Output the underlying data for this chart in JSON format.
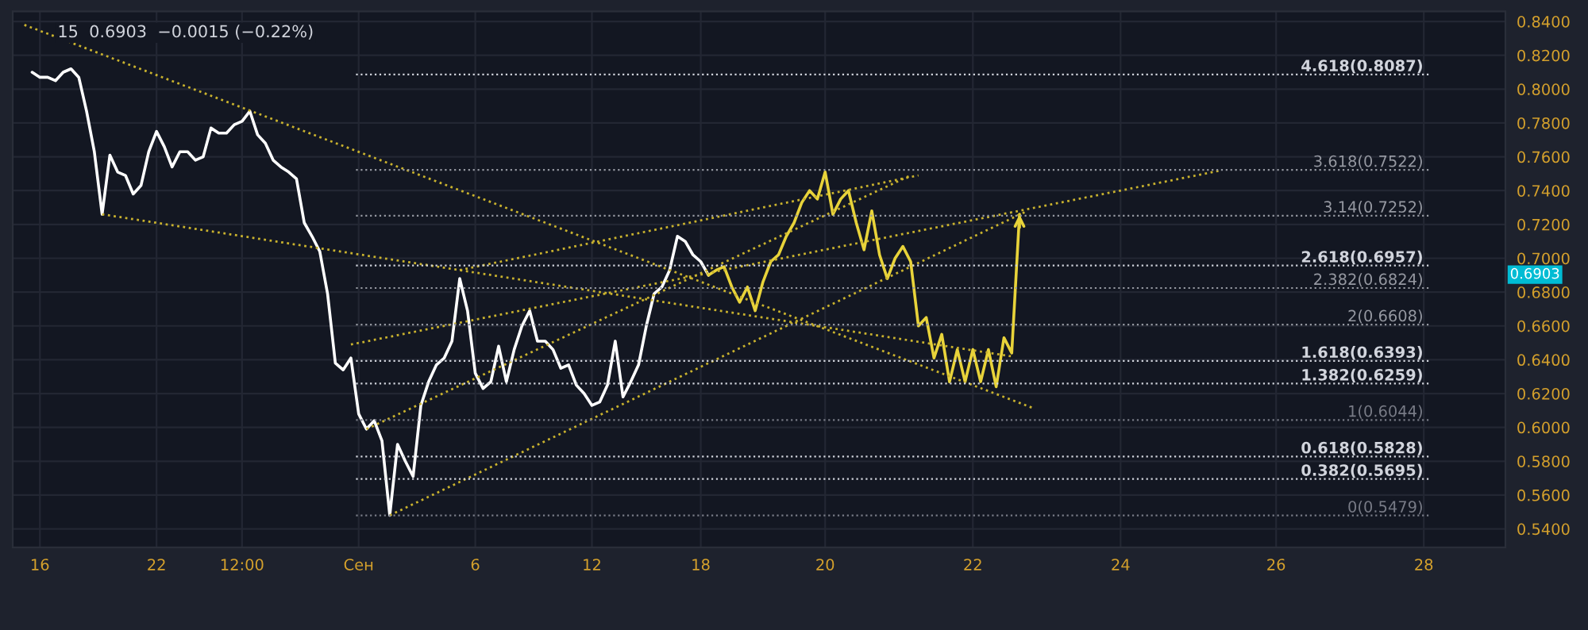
{
  "chart_data": {
    "type": "line",
    "title": "15  0.6903  −0.0015 (−0.22%)",
    "categories": [
      null,
      null,
      null,
      "16",
      null,
      null,
      null,
      null,
      null,
      null,
      null,
      null,
      null,
      null,
      null,
      null,
      null,
      null,
      "22",
      null,
      null,
      null,
      null,
      null,
      null,
      null,
      null,
      null,
      null,
      "12:00",
      null,
      null,
      null,
      null,
      null,
      null,
      null,
      null,
      null,
      null,
      null,
      null,
      null,
      null,
      "Сен",
      null,
      null,
      null,
      null,
      null,
      null,
      null,
      null,
      null,
      null,
      null,
      null,
      null,
      null,
      "6",
      null,
      null,
      null,
      null,
      null,
      null,
      null,
      null,
      null,
      null,
      null,
      null,
      null,
      null,
      "12",
      null,
      null,
      null,
      null,
      null,
      null,
      null,
      null,
      null,
      null,
      null,
      null,
      null,
      "18",
      null,
      null,
      null,
      null,
      null,
      null,
      null,
      null,
      null,
      null,
      null,
      null,
      null,
      null,
      null,
      "20",
      null,
      null,
      null,
      null,
      null,
      null,
      null,
      null,
      null,
      null,
      null,
      null,
      null,
      null,
      null,
      null,
      null,
      null,
      "22",
      null,
      null,
      null,
      null,
      null,
      null,
      null,
      null,
      null,
      null,
      null,
      null,
      null,
      null,
      null,
      null,
      null,
      null,
      "24",
      null,
      null,
      null,
      null,
      null,
      null,
      null,
      null,
      null,
      null,
      null,
      null,
      null,
      null,
      null,
      null,
      null,
      null,
      null,
      "26",
      null,
      null,
      null,
      null,
      null,
      null,
      null,
      null,
      null,
      null,
      null,
      null,
      null,
      null,
      null,
      null,
      null,
      null,
      "28",
      null,
      null,
      null,
      null,
      null,
      null,
      null,
      null,
      null,
      null
    ],
    "ylim": [
      0.529,
      0.846
    ],
    "yticks": [
      {
        "value": 0.54,
        "label": "0.5400"
      },
      {
        "value": 0.56,
        "label": "0.5600"
      },
      {
        "value": 0.58,
        "label": "0.5800"
      },
      {
        "value": 0.6,
        "label": "0.6000"
      },
      {
        "value": 0.62,
        "label": "0.6200"
      },
      {
        "value": 0.64,
        "label": "0.6400"
      },
      {
        "value": 0.66,
        "label": "0.6600"
      },
      {
        "value": 0.68,
        "label": "0.6800"
      },
      {
        "value": 0.7,
        "label": "0.7000"
      },
      {
        "value": 0.72,
        "label": "0.7200"
      },
      {
        "value": 0.74,
        "label": "0.7400"
      },
      {
        "value": 0.76,
        "label": "0.7600"
      },
      {
        "value": 0.78,
        "label": "0.7800"
      },
      {
        "value": 0.8,
        "label": "0.8000"
      },
      {
        "value": 0.82,
        "label": "0.8200"
      },
      {
        "value": 0.84,
        "label": "0.8400"
      }
    ],
    "grid": true,
    "series": [
      {
        "type": "line",
        "color": "#ffffff",
        "line_style": "solid",
        "values": [
          null,
          null,
          0.81,
          0.807,
          0.807,
          0.805,
          0.81,
          0.812,
          0.807,
          0.787,
          0.763,
          0.726,
          0.761,
          0.751,
          0.749,
          0.738,
          0.743,
          0.763,
          0.775,
          0.766,
          0.754,
          0.763,
          0.763,
          0.758,
          0.76,
          0.777,
          0.774,
          0.774,
          0.779,
          0.781,
          0.787,
          0.773,
          0.768,
          0.758,
          0.754,
          0.751,
          0.747,
          0.721,
          0.713,
          0.704,
          0.679,
          0.638,
          0.634,
          0.641,
          0.608,
          0.599,
          0.604,
          0.592,
          0.548,
          0.59,
          0.58,
          0.571,
          0.613,
          0.627,
          0.637,
          0.641,
          0.651,
          0.688,
          0.669,
          0.632,
          0.623,
          0.627,
          0.648,
          0.627,
          0.646,
          0.66,
          0.669,
          0.651,
          0.651,
          0.646,
          0.635,
          0.637,
          0.625,
          0.62,
          0.613,
          0.615,
          0.625,
          0.651,
          0.618,
          0.627,
          0.637,
          0.66,
          0.679,
          0.683,
          0.693,
          0.713,
          0.71,
          0.702,
          0.698,
          0.69,
          null,
          null,
          null,
          null,
          null,
          null,
          null,
          null,
          null,
          null,
          null,
          null,
          null,
          null,
          null,
          null,
          null,
          null,
          null,
          null,
          null,
          null,
          null,
          null,
          null,
          null,
          null,
          null,
          null,
          null,
          null,
          null,
          null,
          null,
          null,
          null,
          null,
          null,
          null,
          null,
          null,
          null,
          null,
          null,
          null,
          null,
          null,
          null,
          null,
          null,
          null,
          null,
          null,
          null,
          null,
          null,
          null,
          null,
          null,
          null,
          null,
          null,
          null,
          null,
          null,
          null,
          null,
          null,
          null,
          null,
          null,
          null,
          null,
          null,
          null,
          null,
          null,
          null,
          null,
          null,
          null,
          null,
          null,
          null,
          null,
          null,
          null,
          null,
          null,
          null,
          null,
          null,
          null,
          null,
          null,
          null,
          null,
          null,
          null,
          null,
          null,
          null
        ]
      },
      {
        "type": "line",
        "color": "#e8d33a",
        "line_style": "solid",
        "values": [
          null,
          null,
          null,
          null,
          null,
          null,
          null,
          null,
          null,
          null,
          null,
          null,
          null,
          null,
          null,
          null,
          null,
          null,
          null,
          null,
          null,
          null,
          null,
          null,
          null,
          null,
          null,
          null,
          null,
          null,
          null,
          null,
          null,
          null,
          null,
          null,
          null,
          null,
          null,
          null,
          null,
          null,
          null,
          null,
          null,
          null,
          null,
          null,
          null,
          null,
          null,
          null,
          null,
          null,
          null,
          null,
          null,
          null,
          null,
          null,
          null,
          null,
          null,
          null,
          null,
          null,
          null,
          null,
          null,
          null,
          null,
          null,
          null,
          null,
          null,
          null,
          null,
          null,
          null,
          null,
          null,
          null,
          null,
          null,
          null,
          null,
          null,
          null,
          null,
          0.69,
          0.693,
          0.695,
          0.683,
          0.674,
          0.683,
          0.669,
          0.686,
          0.698,
          0.702,
          0.713,
          0.721,
          0.733,
          0.74,
          0.735,
          0.751,
          0.726,
          0.735,
          0.74,
          0.721,
          0.705,
          0.728,
          0.702,
          0.688,
          0.7,
          0.707,
          0.698,
          0.66,
          0.665,
          0.641,
          0.655,
          0.627,
          0.646,
          0.627,
          0.646,
          0.627,
          0.646,
          0.624,
          0.653,
          0.644,
          0.726,
          null,
          null,
          null,
          null,
          null,
          null,
          null,
          null,
          null,
          null,
          null,
          null,
          null,
          null,
          null,
          null,
          null,
          null,
          null,
          null,
          null,
          null,
          null,
          null,
          null,
          null,
          null,
          null,
          null,
          null,
          null,
          null,
          null,
          null,
          null,
          null,
          null,
          null,
          null,
          null,
          null,
          null,
          null,
          null,
          null,
          null,
          null,
          null,
          null,
          null,
          null,
          null,
          null,
          null,
          null,
          null,
          null,
          null,
          null,
          null,
          null,
          null
        ]
      },
      {
        "type": "line",
        "color": "#c9b22e",
        "line_style": "dotted",
        "values": [
          null,
          0.838,
          null,
          null,
          null,
          null,
          null,
          null,
          null,
          null,
          null,
          null,
          null,
          null,
          null,
          null,
          null,
          null,
          null,
          null,
          null,
          null,
          null,
          null,
          null,
          null,
          null,
          null,
          null,
          null,
          null,
          null,
          null,
          null,
          null,
          null,
          null,
          null,
          null,
          null,
          null,
          null,
          null,
          null,
          null,
          null,
          null,
          null,
          null,
          null,
          null,
          null,
          null,
          null,
          null,
          null,
          null,
          null,
          null,
          null,
          null,
          null,
          null,
          null,
          null,
          null,
          null,
          null,
          null,
          null,
          null,
          null,
          null,
          null,
          null,
          null,
          null,
          null,
          null,
          null,
          null,
          null,
          null,
          null,
          null,
          null,
          null,
          null,
          null,
          null,
          null,
          null,
          null,
          null,
          null,
          null,
          null,
          null,
          null,
          null,
          null,
          null,
          null,
          null,
          null,
          null,
          null,
          null,
          null,
          null,
          null,
          null,
          null,
          null,
          null,
          null,
          null,
          null,
          null,
          null,
          null,
          null,
          null,
          null,
          null,
          null,
          null,
          null,
          null,
          null,
          null,
          0.611,
          null,
          null,
          null,
          null,
          null,
          null,
          null,
          null,
          null,
          null,
          null,
          null,
          null,
          null,
          null,
          null,
          null,
          null,
          null,
          null,
          null,
          null,
          null,
          null,
          null,
          null,
          null,
          null,
          null,
          null,
          null,
          null,
          null,
          null,
          null,
          null,
          null,
          null,
          null,
          null,
          null,
          null,
          null,
          null,
          null,
          null,
          null,
          null,
          null,
          null,
          null,
          null,
          null,
          null,
          null,
          null,
          null,
          null,
          null,
          null
        ]
      },
      {
        "type": "line",
        "color": "#c9b22e",
        "line_style": "dotted",
        "values": [
          null,
          null,
          null,
          null,
          null,
          null,
          null,
          null,
          null,
          null,
          null,
          0.726,
          null,
          null,
          null,
          null,
          null,
          null,
          null,
          null,
          null,
          null,
          null,
          null,
          null,
          null,
          null,
          null,
          null,
          null,
          null,
          null,
          null,
          null,
          null,
          null,
          null,
          null,
          null,
          null,
          null,
          null,
          null,
          null,
          null,
          null,
          null,
          null,
          null,
          null,
          null,
          null,
          null,
          null,
          null,
          null,
          null,
          null,
          null,
          null,
          null,
          null,
          null,
          null,
          null,
          null,
          null,
          null,
          null,
          null,
          null,
          null,
          null,
          null,
          null,
          null,
          null,
          null,
          null,
          null,
          null,
          null,
          null,
          null,
          null,
          null,
          null,
          null,
          null,
          null,
          null,
          null,
          null,
          null,
          null,
          null,
          null,
          null,
          null,
          null,
          null,
          null,
          null,
          null,
          null,
          null,
          null,
          null,
          null,
          null,
          null,
          null,
          null,
          null,
          null,
          null,
          null,
          null,
          null,
          null,
          null,
          null,
          null,
          null,
          null,
          null,
          null,
          null,
          0.642,
          null,
          null,
          null,
          null,
          null,
          null,
          null,
          null,
          null,
          null,
          null,
          null,
          null,
          null,
          null,
          null,
          null,
          null,
          null,
          null,
          null,
          null,
          null,
          null,
          null,
          null,
          null,
          null,
          null,
          null,
          null,
          null,
          null,
          null,
          null,
          null,
          null,
          null,
          null,
          null,
          null,
          null,
          null,
          null,
          null,
          null,
          null,
          null,
          null,
          null,
          null,
          null,
          null,
          null,
          null,
          null,
          null,
          null,
          null,
          null,
          null,
          null,
          null
        ]
      },
      {
        "type": "line",
        "color": "#c9b22e",
        "line_style": "dotted",
        "values": [
          null,
          null,
          null,
          null,
          null,
          null,
          null,
          null,
          null,
          null,
          null,
          null,
          null,
          null,
          null,
          null,
          null,
          null,
          null,
          null,
          null,
          null,
          null,
          null,
          null,
          null,
          null,
          null,
          null,
          null,
          null,
          null,
          null,
          null,
          null,
          null,
          null,
          null,
          null,
          null,
          null,
          null,
          null,
          null,
          null,
          null,
          null,
          null,
          0.548,
          null,
          null,
          null,
          null,
          null,
          null,
          null,
          null,
          null,
          null,
          null,
          null,
          null,
          null,
          null,
          null,
          null,
          null,
          null,
          null,
          null,
          null,
          null,
          null,
          null,
          null,
          null,
          null,
          null,
          null,
          null,
          null,
          null,
          null,
          null,
          null,
          null,
          null,
          null,
          null,
          null,
          null,
          null,
          null,
          null,
          null,
          null,
          null,
          null,
          null,
          null,
          null,
          null,
          null,
          null,
          null,
          null,
          null,
          null,
          null,
          null,
          null,
          null,
          null,
          null,
          null,
          null,
          null,
          null,
          null,
          null,
          null,
          null,
          null,
          null,
          null,
          null,
          null,
          null,
          null,
          null,
          0.728,
          null,
          null,
          null,
          null,
          null,
          null,
          null,
          null,
          null,
          null,
          null,
          null,
          null,
          null,
          null,
          null,
          null,
          null,
          null,
          null,
          null,
          null,
          null,
          null,
          null,
          null,
          null,
          null,
          null,
          null,
          null,
          null,
          null,
          null,
          null,
          null,
          null,
          null,
          null,
          null,
          null,
          null,
          null,
          null,
          null,
          null,
          null,
          null,
          null,
          null,
          null,
          null,
          null,
          null,
          null,
          null,
          null,
          null,
          null,
          null,
          null
        ]
      },
      {
        "type": "line",
        "color": "#c9b22e",
        "line_style": "dotted",
        "values": [
          null,
          null,
          null,
          null,
          null,
          null,
          null,
          null,
          null,
          null,
          null,
          null,
          null,
          null,
          null,
          null,
          null,
          null,
          null,
          null,
          null,
          null,
          null,
          null,
          null,
          null,
          null,
          null,
          null,
          null,
          null,
          null,
          null,
          null,
          null,
          null,
          null,
          null,
          null,
          null,
          null,
          null,
          null,
          null,
          null,
          null,
          null,
          null,
          null,
          null,
          null,
          null,
          null,
          null,
          null,
          null,
          null,
          0.693,
          null,
          null,
          null,
          null,
          null,
          null,
          null,
          null,
          null,
          null,
          null,
          null,
          null,
          null,
          null,
          null,
          null,
          null,
          null,
          null,
          null,
          null,
          null,
          null,
          null,
          null,
          null,
          null,
          null,
          null,
          null,
          null,
          null,
          null,
          null,
          null,
          null,
          null,
          null,
          null,
          null,
          null,
          null,
          null,
          null,
          null,
          null,
          null,
          null,
          null,
          null,
          null,
          null,
          null,
          null,
          null,
          null,
          null,
          0.749,
          null,
          null,
          null,
          null,
          null,
          null,
          null,
          null,
          null,
          null,
          null,
          null,
          null,
          null,
          null,
          null,
          null,
          null,
          null,
          null,
          null,
          null,
          null,
          null,
          null,
          null,
          null,
          null,
          null,
          null,
          null,
          null,
          null,
          null,
          null,
          null,
          null,
          null,
          null,
          null,
          null,
          null,
          null,
          null,
          null,
          null,
          null,
          null,
          null,
          null,
          null,
          null,
          null,
          null,
          null,
          null,
          null,
          null,
          null,
          null,
          null,
          null,
          null,
          null,
          null,
          null,
          null,
          null,
          null,
          null,
          null,
          null,
          null,
          null,
          null
        ]
      },
      {
        "type": "line",
        "color": "#c9b22e",
        "line_style": "dotted",
        "values": [
          null,
          null,
          null,
          null,
          null,
          null,
          null,
          null,
          null,
          null,
          null,
          null,
          null,
          null,
          null,
          null,
          null,
          null,
          null,
          null,
          null,
          null,
          null,
          null,
          null,
          null,
          null,
          null,
          null,
          null,
          null,
          null,
          null,
          null,
          null,
          null,
          null,
          null,
          null,
          null,
          null,
          null,
          null,
          0.649,
          null,
          null,
          null,
          null,
          null,
          null,
          null,
          null,
          null,
          null,
          null,
          null,
          null,
          null,
          null,
          null,
          null,
          null,
          null,
          null,
          null,
          null,
          null,
          null,
          null,
          null,
          null,
          null,
          null,
          null,
          null,
          null,
          null,
          null,
          null,
          null,
          null,
          null,
          null,
          null,
          null,
          null,
          null,
          null,
          null,
          null,
          null,
          null,
          null,
          null,
          null,
          null,
          null,
          null,
          null,
          null,
          null,
          null,
          null,
          null,
          null,
          null,
          null,
          null,
          null,
          null,
          null,
          null,
          null,
          null,
          null,
          null,
          null,
          null,
          null,
          null,
          null,
          null,
          null,
          null,
          null,
          null,
          null,
          null,
          null,
          null,
          null,
          null,
          null,
          null,
          null,
          null,
          null,
          null,
          null,
          null,
          null,
          null,
          null,
          null,
          null,
          null,
          null,
          null,
          null,
          null,
          null,
          null,
          null,
          null,
          null,
          0.752,
          null,
          null,
          null,
          null,
          null,
          null,
          null,
          null,
          null,
          null,
          null,
          null,
          null,
          null,
          null,
          null,
          null,
          null,
          null,
          null,
          null,
          null,
          null,
          null,
          null,
          null,
          null,
          null,
          null,
          null,
          null,
          null,
          null,
          null,
          null,
          null
        ]
      },
      {
        "type": "line",
        "color": "#c9b22e",
        "line_style": "dotted",
        "values": [
          null,
          null,
          null,
          null,
          null,
          null,
          null,
          null,
          null,
          null,
          null,
          null,
          null,
          null,
          null,
          null,
          null,
          null,
          null,
          null,
          null,
          null,
          null,
          null,
          null,
          null,
          null,
          null,
          null,
          null,
          null,
          null,
          null,
          null,
          null,
          null,
          null,
          null,
          null,
          null,
          null,
          null,
          null,
          null,
          null,
          0.599,
          null,
          null,
          null,
          null,
          null,
          null,
          null,
          null,
          null,
          null,
          null,
          null,
          null,
          null,
          null,
          null,
          null,
          null,
          null,
          null,
          null,
          null,
          null,
          null,
          null,
          null,
          null,
          null,
          null,
          null,
          null,
          null,
          null,
          null,
          null,
          null,
          null,
          null,
          null,
          null,
          null,
          null,
          null,
          null,
          null,
          null,
          null,
          null,
          null,
          null,
          null,
          null,
          null,
          null,
          null,
          null,
          null,
          null,
          null,
          null,
          null,
          null,
          null,
          null,
          null,
          null,
          null,
          null,
          null,
          0.749,
          null,
          null,
          null,
          null,
          null,
          null,
          null,
          null,
          null,
          null,
          null,
          null,
          null,
          null,
          null,
          null,
          null,
          null,
          null,
          null,
          null,
          null,
          null,
          null,
          null,
          null,
          null,
          null,
          null,
          null,
          null,
          null,
          null,
          null,
          null,
          null,
          null,
          null,
          null,
          null,
          null,
          null,
          null,
          null,
          null,
          null,
          null,
          null,
          null,
          null,
          null,
          null,
          null,
          null,
          null,
          null,
          null,
          null,
          null,
          null,
          null,
          null,
          null,
          null,
          null,
          null,
          null,
          null,
          null,
          null,
          null,
          null,
          null,
          null,
          null,
          null
        ]
      }
    ],
    "ref_lines": [
      {
        "axis": "y",
        "value": 0.8087,
        "label": "4.618(0.8087)",
        "color": "#d1d4dc",
        "line_style": "dotted"
      },
      {
        "axis": "y",
        "value": 0.7522,
        "label": "3.618(0.7522)",
        "color": "#9598a1",
        "line_style": "dotted"
      },
      {
        "axis": "y",
        "value": 0.7252,
        "label": "3.14(0.7252)",
        "color": "#9598a1",
        "line_style": "dotted"
      },
      {
        "axis": "y",
        "value": 0.6957,
        "label": "2.618(0.6957)",
        "color": "#d1d4dc",
        "line_style": "dotted"
      },
      {
        "axis": "y",
        "value": 0.6824,
        "label": "2.382(0.6824)",
        "color": "#9598a1",
        "line_style": "dotted"
      },
      {
        "axis": "y",
        "value": 0.6608,
        "label": "2(0.6608)",
        "color": "#9598a1",
        "line_style": "dotted"
      },
      {
        "axis": "y",
        "value": 0.6393,
        "label": "1.618(0.6393)",
        "color": "#d1d4dc",
        "line_style": "dotted"
      },
      {
        "axis": "y",
        "value": 0.6259,
        "label": "1.382(0.6259)",
        "color": "#d1d4dc",
        "line_style": "dotted"
      },
      {
        "axis": "y",
        "value": 0.6044,
        "label": "1(0.6044)",
        "color": "#787b86",
        "line_style": "dotted"
      },
      {
        "axis": "y",
        "value": 0.5828,
        "label": "0.618(0.5828)",
        "color": "#d1d4dc",
        "line_style": "dotted"
      },
      {
        "axis": "y",
        "value": 0.5695,
        "label": "0.382(0.5695)",
        "color": "#d1d4dc",
        "line_style": "dotted"
      },
      {
        "axis": "y",
        "value": 0.5479,
        "label": "0(0.5479)",
        "color": "#787b86",
        "line_style": "dotted"
      }
    ],
    "annotations": [
      {
        "text": "0.6903",
        "y": 0.6903
      }
    ]
  }
}
